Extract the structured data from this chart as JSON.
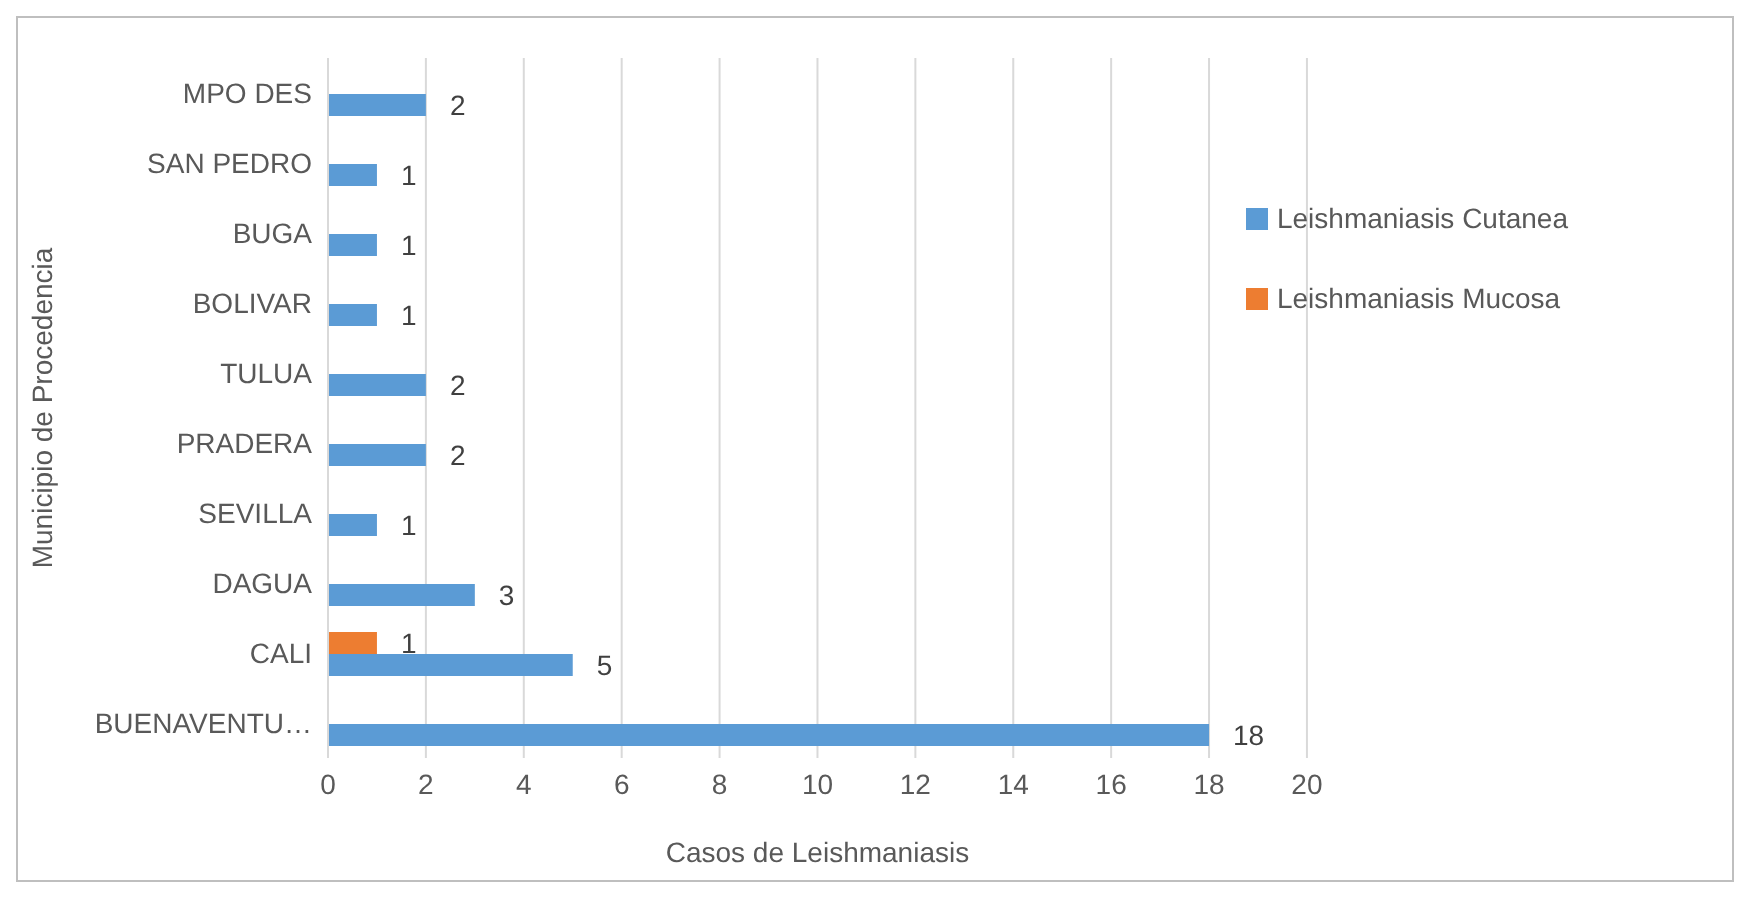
{
  "chart_data": {
    "type": "bar",
    "orientation": "horizontal",
    "xlabel": "Casos de Leishmaniasis",
    "ylabel": "Municipio de Procedencia",
    "categories": [
      "MPO DES",
      "SAN PEDRO",
      "BUGA",
      "BOLIVAR",
      "TULUA",
      "PRADERA",
      "SEVILLA",
      "DAGUA",
      "CALI",
      "BUENAVENTU…"
    ],
    "series": [
      {
        "name": "Leishmaniasis Mucosa",
        "color": "#ed7d31",
        "values": [
          null,
          null,
          null,
          null,
          null,
          null,
          null,
          null,
          1,
          null
        ]
      },
      {
        "name": "Leishmaniasis Cutanea",
        "color": "#5b9bd5",
        "values": [
          2,
          1,
          1,
          1,
          2,
          2,
          1,
          3,
          5,
          18
        ]
      }
    ],
    "xlim": [
      0,
      20
    ],
    "xticks": [
      0,
      2,
      4,
      6,
      8,
      10,
      12,
      14,
      16,
      18,
      20
    ],
    "grid": "x",
    "legend": "right",
    "data_labels": true
  }
}
